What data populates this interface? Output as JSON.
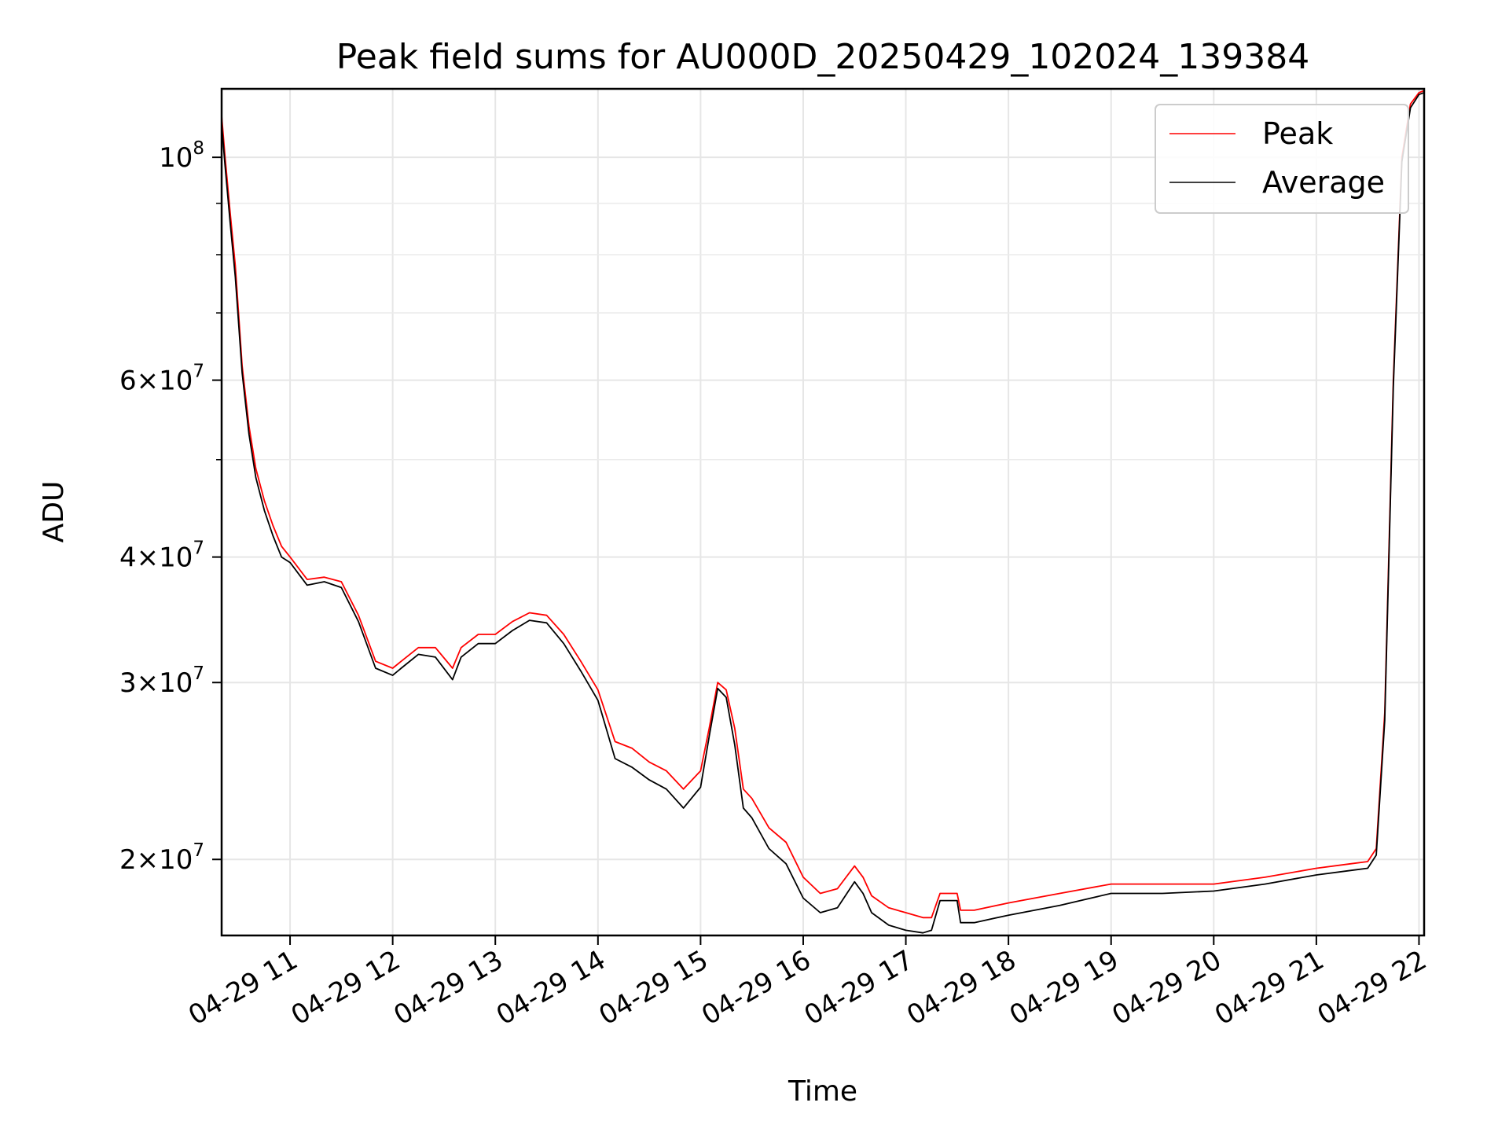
{
  "chart_data": {
    "type": "line",
    "title": "Peak field sums for AU000D_20250429_102024_139384",
    "xlabel": "Time",
    "ylabel": "ADU",
    "yscale": "log",
    "grid": true,
    "legend_placement": "top-right",
    "xlim": [
      "2025-04-29 10:20",
      "2025-04-29 22:03"
    ],
    "ylim": [
      16800000,
      117000000
    ],
    "x_ticks": [
      {
        "value": "2025-04-29 11:00",
        "label": "04-29 11"
      },
      {
        "value": "2025-04-29 12:00",
        "label": "04-29 12"
      },
      {
        "value": "2025-04-29 13:00",
        "label": "04-29 13"
      },
      {
        "value": "2025-04-29 14:00",
        "label": "04-29 14"
      },
      {
        "value": "2025-04-29 15:00",
        "label": "04-29 15"
      },
      {
        "value": "2025-04-29 16:00",
        "label": "04-29 16"
      },
      {
        "value": "2025-04-29 17:00",
        "label": "04-29 17"
      },
      {
        "value": "2025-04-29 18:00",
        "label": "04-29 18"
      },
      {
        "value": "2025-04-29 19:00",
        "label": "04-29 19"
      },
      {
        "value": "2025-04-29 20:00",
        "label": "04-29 20"
      },
      {
        "value": "2025-04-29 21:00",
        "label": "04-29 21"
      },
      {
        "value": "2025-04-29 22:00",
        "label": "04-29 22"
      }
    ],
    "y_ticks": [
      {
        "value": 20000000,
        "mantissa": "2",
        "exponent": "7"
      },
      {
        "value": 30000000,
        "mantissa": "3",
        "exponent": "7"
      },
      {
        "value": 40000000,
        "mantissa": "4",
        "exponent": "7"
      },
      {
        "value": 60000000,
        "mantissa": "6",
        "exponent": "7"
      },
      {
        "value": 100000000,
        "mantissa": "",
        "exponent": "8"
      }
    ],
    "y_minor_ticks": [
      50000000,
      70000000,
      80000000,
      90000000
    ],
    "series": [
      {
        "name": "Peak",
        "color": "#ff0000",
        "x": [
          "2025-04-29 10:20",
          "2025-04-29 10:22",
          "2025-04-29 10:25",
          "2025-04-29 10:28",
          "2025-04-29 10:32",
          "2025-04-29 10:36",
          "2025-04-29 10:40",
          "2025-04-29 10:45",
          "2025-04-29 10:50",
          "2025-04-29 10:55",
          "2025-04-29 11:00",
          "2025-04-29 11:10",
          "2025-04-29 11:20",
          "2025-04-29 11:30",
          "2025-04-29 11:40",
          "2025-04-29 11:50",
          "2025-04-29 12:00",
          "2025-04-29 12:05",
          "2025-04-29 12:15",
          "2025-04-29 12:25",
          "2025-04-29 12:35",
          "2025-04-29 12:40",
          "2025-04-29 12:50",
          "2025-04-29 13:00",
          "2025-04-29 13:10",
          "2025-04-29 13:20",
          "2025-04-29 13:30",
          "2025-04-29 13:40",
          "2025-04-29 13:50",
          "2025-04-29 14:00",
          "2025-04-29 14:10",
          "2025-04-29 14:20",
          "2025-04-29 14:30",
          "2025-04-29 14:40",
          "2025-04-29 14:50",
          "2025-04-29 15:00",
          "2025-04-29 15:05",
          "2025-04-29 15:10",
          "2025-04-29 15:15",
          "2025-04-29 15:20",
          "2025-04-29 15:25",
          "2025-04-29 15:30",
          "2025-04-29 15:40",
          "2025-04-29 15:50",
          "2025-04-29 16:00",
          "2025-04-29 16:10",
          "2025-04-29 16:20",
          "2025-04-29 16:30",
          "2025-04-29 16:35",
          "2025-04-29 16:40",
          "2025-04-29 16:50",
          "2025-04-29 17:00",
          "2025-04-29 17:10",
          "2025-04-29 17:15",
          "2025-04-29 17:20",
          "2025-04-29 17:30",
          "2025-04-29 17:32",
          "2025-04-29 17:40",
          "2025-04-29 18:00",
          "2025-04-29 18:30",
          "2025-04-29 19:00",
          "2025-04-29 19:30",
          "2025-04-29 20:00",
          "2025-04-29 20:30",
          "2025-04-29 21:00",
          "2025-04-29 21:20",
          "2025-04-29 21:30",
          "2025-04-29 21:35",
          "2025-04-29 21:40",
          "2025-04-29 21:45",
          "2025-04-29 21:50",
          "2025-04-29 21:55",
          "2025-04-29 22:00",
          "2025-04-29 22:03"
        ],
        "values": [
          110000000,
          100000000,
          88000000,
          78000000,
          62000000,
          54000000,
          49000000,
          45500000,
          43000000,
          41000000,
          40000000,
          38000000,
          38200000,
          37800000,
          35000000,
          31500000,
          31000000,
          31500000,
          32500000,
          32500000,
          31000000,
          32500000,
          33500000,
          33500000,
          34500000,
          35200000,
          35000000,
          33500000,
          31500000,
          29500000,
          26200000,
          25800000,
          25000000,
          24500000,
          23500000,
          24500000,
          27000000,
          30000000,
          29500000,
          27000000,
          23500000,
          23000000,
          21500000,
          20800000,
          19200000,
          18500000,
          18700000,
          19700000,
          19200000,
          18400000,
          17900000,
          17700000,
          17500000,
          17500000,
          18500000,
          18500000,
          17800000,
          17800000,
          18100000,
          18500000,
          18900000,
          18900000,
          18900000,
          19200000,
          19600000,
          19800000,
          19900000,
          20500000,
          28000000,
          60000000,
          100000000,
          113000000,
          116000000,
          116500000
        ]
      },
      {
        "name": "Average",
        "color": "#000000",
        "x": [
          "2025-04-29 10:20",
          "2025-04-29 10:22",
          "2025-04-29 10:25",
          "2025-04-29 10:28",
          "2025-04-29 10:32",
          "2025-04-29 10:36",
          "2025-04-29 10:40",
          "2025-04-29 10:45",
          "2025-04-29 10:50",
          "2025-04-29 10:55",
          "2025-04-29 11:00",
          "2025-04-29 11:10",
          "2025-04-29 11:20",
          "2025-04-29 11:30",
          "2025-04-29 11:40",
          "2025-04-29 11:50",
          "2025-04-29 12:00",
          "2025-04-29 12:05",
          "2025-04-29 12:15",
          "2025-04-29 12:25",
          "2025-04-29 12:35",
          "2025-04-29 12:40",
          "2025-04-29 12:50",
          "2025-04-29 13:00",
          "2025-04-29 13:10",
          "2025-04-29 13:20",
          "2025-04-29 13:30",
          "2025-04-29 13:40",
          "2025-04-29 13:50",
          "2025-04-29 14:00",
          "2025-04-29 14:10",
          "2025-04-29 14:20",
          "2025-04-29 14:30",
          "2025-04-29 14:40",
          "2025-04-29 14:50",
          "2025-04-29 15:00",
          "2025-04-29 15:05",
          "2025-04-29 15:10",
          "2025-04-29 15:15",
          "2025-04-29 15:20",
          "2025-04-29 15:25",
          "2025-04-29 15:30",
          "2025-04-29 15:40",
          "2025-04-29 15:50",
          "2025-04-29 16:00",
          "2025-04-29 16:10",
          "2025-04-29 16:20",
          "2025-04-29 16:30",
          "2025-04-29 16:35",
          "2025-04-29 16:40",
          "2025-04-29 16:50",
          "2025-04-29 17:00",
          "2025-04-29 17:10",
          "2025-04-29 17:15",
          "2025-04-29 17:20",
          "2025-04-29 17:30",
          "2025-04-29 17:32",
          "2025-04-29 17:40",
          "2025-04-29 18:00",
          "2025-04-29 18:30",
          "2025-04-29 19:00",
          "2025-04-29 19:30",
          "2025-04-29 20:00",
          "2025-04-29 20:30",
          "2025-04-29 21:00",
          "2025-04-29 21:20",
          "2025-04-29 21:30",
          "2025-04-29 21:35",
          "2025-04-29 21:40",
          "2025-04-29 21:45",
          "2025-04-29 21:50",
          "2025-04-29 21:55",
          "2025-04-29 22:00",
          "2025-04-29 22:03"
        ],
        "values": [
          108000000,
          98000000,
          86000000,
          76000000,
          61000000,
          53000000,
          48000000,
          44500000,
          42000000,
          40000000,
          39500000,
          37500000,
          37800000,
          37300000,
          34500000,
          31000000,
          30500000,
          31000000,
          32000000,
          31800000,
          30200000,
          31800000,
          32800000,
          32800000,
          33800000,
          34600000,
          34400000,
          32800000,
          30800000,
          28800000,
          25200000,
          24700000,
          24000000,
          23500000,
          22500000,
          23600000,
          26500000,
          29600000,
          29000000,
          26000000,
          22500000,
          22000000,
          20500000,
          19800000,
          18300000,
          17700000,
          17900000,
          19000000,
          18500000,
          17700000,
          17200000,
          17000000,
          16900000,
          17000000,
          18200000,
          18200000,
          17300000,
          17300000,
          17600000,
          18000000,
          18500000,
          18500000,
          18600000,
          18900000,
          19300000,
          19500000,
          19600000,
          20200000,
          27500000,
          59000000,
          99000000,
          112000000,
          115500000,
          116000000
        ]
      }
    ]
  }
}
